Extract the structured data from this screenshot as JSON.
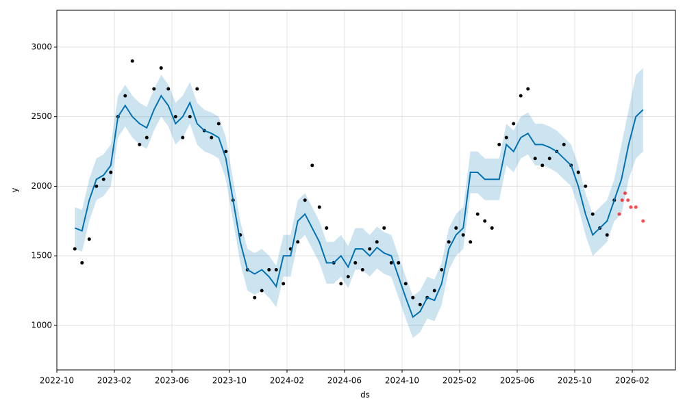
{
  "chart_data": {
    "type": "forecast",
    "xlabel": "ds",
    "ylabel": "y",
    "xlim": [
      "2022-10",
      "2026-05"
    ],
    "ylim": [
      680,
      3265
    ],
    "xticks": [
      "2022-10",
      "2023-02",
      "2023-06",
      "2023-10",
      "2024-02",
      "2024-06",
      "2024-10",
      "2025-02",
      "2025-06",
      "2025-10",
      "2026-02"
    ],
    "yticks": [
      1000,
      1500,
      2000,
      2500,
      3000
    ],
    "grid": true,
    "observed": {
      "color": "#000000",
      "x": [
        "2022-11",
        "2022-11",
        "2022-12",
        "2022-12",
        "2023-01",
        "2023-01",
        "2023-02",
        "2023-02",
        "2023-03",
        "2023-03",
        "2023-04",
        "2023-04",
        "2023-05",
        "2023-05",
        "2023-06",
        "2023-06",
        "2023-07",
        "2023-07",
        "2023-08",
        "2023-08",
        "2023-09",
        "2023-09",
        "2023-10",
        "2023-10",
        "2023-11",
        "2023-11",
        "2023-12",
        "2023-12",
        "2024-01",
        "2024-01",
        "2024-02",
        "2024-02",
        "2024-03",
        "2024-03",
        "2024-04",
        "2024-04",
        "2024-05",
        "2024-05",
        "2024-06",
        "2024-06",
        "2024-07",
        "2024-07",
        "2024-08",
        "2024-08",
        "2024-09",
        "2024-09",
        "2024-10",
        "2024-10",
        "2024-11",
        "2024-11",
        "2024-12",
        "2024-12",
        "2025-01",
        "2025-01",
        "2025-02",
        "2025-02",
        "2025-03",
        "2025-03",
        "2025-04",
        "2025-04",
        "2025-05",
        "2025-05",
        "2025-06",
        "2025-06",
        "2025-07",
        "2025-07",
        "2025-08",
        "2025-08",
        "2025-09",
        "2025-09",
        "2025-10",
        "2025-10",
        "2025-11",
        "2025-11",
        "2025-12",
        "2025-12"
      ],
      "values": [
        1550,
        1450,
        1620,
        2000,
        2050,
        2100,
        2500,
        2650,
        2900,
        2300,
        2350,
        2700,
        2850,
        2700,
        2500,
        2350,
        2500,
        2700,
        2400,
        2350,
        2450,
        2250,
        1900,
        1650,
        1400,
        1200,
        1250,
        1400,
        1400,
        1300,
        1550,
        1600,
        1900,
        2150,
        1850,
        1700,
        1450,
        1300,
        1350,
        1450,
        1400,
        1550,
        1600,
        1700,
        1450,
        1450,
        1300,
        1200,
        1150,
        1200,
        1250,
        1400,
        1600,
        1700,
        1650,
        1600,
        1800,
        1750,
        1700,
        2300,
        2350,
        2450,
        2650,
        2700,
        2200,
        2150,
        2200,
        2250,
        2300,
        2150,
        2100,
        2000,
        1800,
        1700,
        1650,
        1900
      ]
    },
    "test": {
      "color": "#ff0000",
      "x": [
        "2026-01",
        "2026-01",
        "2026-01",
        "2026-01",
        "2026-01",
        "2026-02",
        "2026-02"
      ],
      "values": [
        1800,
        1900,
        1950,
        1900,
        1850,
        1850,
        1750
      ]
    },
    "forecast": {
      "color": "#0072b2",
      "band_color": "#0072b2",
      "x": [
        "2022-11",
        "2022-11",
        "2022-12",
        "2022-12",
        "2023-01",
        "2023-01",
        "2023-02",
        "2023-02",
        "2023-03",
        "2023-03",
        "2023-04",
        "2023-04",
        "2023-05",
        "2023-05",
        "2023-06",
        "2023-06",
        "2023-07",
        "2023-07",
        "2023-08",
        "2023-08",
        "2023-09",
        "2023-09",
        "2023-10",
        "2023-10",
        "2023-11",
        "2023-11",
        "2023-12",
        "2023-12",
        "2024-01",
        "2024-01",
        "2024-02",
        "2024-02",
        "2024-03",
        "2024-03",
        "2024-04",
        "2024-04",
        "2024-05",
        "2024-05",
        "2024-06",
        "2024-06",
        "2024-07",
        "2024-07",
        "2024-08",
        "2024-08",
        "2024-09",
        "2024-09",
        "2024-10",
        "2024-10",
        "2024-11",
        "2024-11",
        "2024-12",
        "2024-12",
        "2025-01",
        "2025-01",
        "2025-02",
        "2025-02",
        "2025-03",
        "2025-03",
        "2025-04",
        "2025-04",
        "2025-05",
        "2025-05",
        "2025-06",
        "2025-06",
        "2025-07",
        "2025-07",
        "2025-08",
        "2025-08",
        "2025-09",
        "2025-09",
        "2025-10",
        "2025-10",
        "2025-11",
        "2025-11",
        "2025-12",
        "2025-12",
        "2026-01",
        "2026-01",
        "2026-02",
        "2026-02"
      ],
      "values": [
        1700,
        1680,
        1900,
        2050,
        2080,
        2150,
        2500,
        2580,
        2500,
        2450,
        2420,
        2550,
        2650,
        2580,
        2450,
        2500,
        2600,
        2450,
        2400,
        2380,
        2350,
        2200,
        1900,
        1600,
        1400,
        1370,
        1400,
        1350,
        1280,
        1500,
        1500,
        1750,
        1800,
        1700,
        1600,
        1450,
        1450,
        1500,
        1420,
        1550,
        1550,
        1500,
        1560,
        1520,
        1500,
        1350,
        1200,
        1060,
        1100,
        1200,
        1180,
        1300,
        1550,
        1650,
        1700,
        2100,
        2100,
        2050,
        2050,
        2050,
        2300,
        2250,
        2350,
        2380,
        2300,
        2300,
        2280,
        2250,
        2200,
        2150,
        2000,
        1800,
        1650,
        1700,
        1750,
        1900,
        2050,
        2300,
        2500,
        2550
      ],
      "lower": [
        1550,
        1530,
        1750,
        1900,
        1930,
        2000,
        2350,
        2430,
        2350,
        2300,
        2270,
        2400,
        2500,
        2430,
        2300,
        2350,
        2450,
        2300,
        2250,
        2230,
        2200,
        2050,
        1750,
        1450,
        1250,
        1220,
        1250,
        1200,
        1130,
        1350,
        1350,
        1600,
        1650,
        1550,
        1450,
        1300,
        1300,
        1350,
        1270,
        1400,
        1400,
        1350,
        1410,
        1370,
        1350,
        1200,
        1050,
        910,
        950,
        1050,
        1030,
        1150,
        1400,
        1500,
        1550,
        1950,
        1950,
        1900,
        1900,
        1900,
        2150,
        2100,
        2200,
        2230,
        2150,
        2150,
        2130,
        2100,
        2050,
        2000,
        1850,
        1650,
        1500,
        1550,
        1600,
        1750,
        1800,
        2050,
        2200,
        2250
      ],
      "upper": [
        1850,
        1830,
        2050,
        2200,
        2230,
        2300,
        2650,
        2730,
        2650,
        2600,
        2570,
        2700,
        2800,
        2730,
        2600,
        2650,
        2750,
        2600,
        2550,
        2530,
        2500,
        2350,
        2050,
        1750,
        1550,
        1520,
        1550,
        1500,
        1430,
        1650,
        1650,
        1900,
        1950,
        1850,
        1750,
        1600,
        1600,
        1650,
        1570,
        1700,
        1700,
        1650,
        1710,
        1670,
        1650,
        1500,
        1350,
        1210,
        1250,
        1350,
        1330,
        1450,
        1700,
        1800,
        1850,
        2250,
        2250,
        2200,
        2200,
        2200,
        2450,
        2400,
        2500,
        2530,
        2450,
        2450,
        2430,
        2400,
        2350,
        2300,
        2150,
        1950,
        1800,
        1850,
        1900,
        2050,
        2300,
        2550,
        2800,
        2850
      ]
    }
  }
}
